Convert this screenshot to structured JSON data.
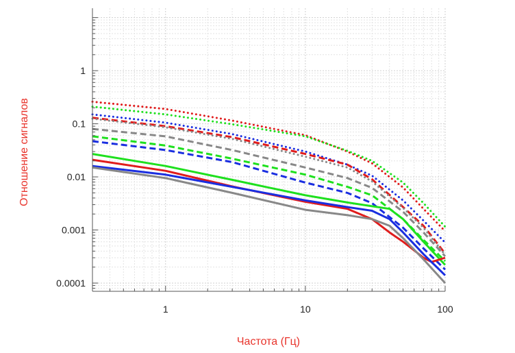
{
  "chart_data": {
    "type": "line",
    "xlabel": "Частота (Гц)",
    "ylabel": "Отношение сигналов",
    "label_color": "#e8332b",
    "xscale": "log",
    "yscale": "log",
    "xlim": [
      0.3,
      100
    ],
    "ylim": [
      7e-05,
      15
    ],
    "grid": true,
    "x_ticks": [
      1,
      10,
      100
    ],
    "x_tick_labels": [
      "1",
      "10",
      "100"
    ],
    "y_ticks": [
      0.0001,
      0.001,
      0.01,
      0.1,
      1
    ],
    "y_tick_labels": [
      "0.0001",
      "0.001",
      "0.01",
      "0.1",
      "1"
    ],
    "series": [
      {
        "color": "#e01c1c",
        "style": "dotted",
        "x": [
          0.3,
          1,
          3,
          10,
          20,
          30,
          50,
          70,
          100
        ],
        "y": [
          0.26,
          0.19,
          0.115,
          0.061,
          0.03,
          0.018,
          0.0063,
          0.0025,
          0.00095
        ]
      },
      {
        "color": "#1ee01e",
        "style": "dotted",
        "x": [
          0.3,
          1,
          3,
          10,
          20,
          30,
          50,
          70,
          100
        ],
        "y": [
          0.21,
          0.15,
          0.098,
          0.058,
          0.031,
          0.02,
          0.0078,
          0.0032,
          0.00115
        ]
      },
      {
        "color": "#1a2ee0",
        "style": "dotted",
        "x": [
          0.3,
          1,
          3,
          10,
          20,
          30,
          50,
          70,
          100
        ],
        "y": [
          0.15,
          0.105,
          0.064,
          0.03,
          0.017,
          0.0105,
          0.0036,
          0.0015,
          0.00058
        ]
      },
      {
        "color": "#e01c1c",
        "style": "dashed",
        "x": [
          0.3,
          1,
          3,
          10,
          20,
          30,
          50,
          70,
          100
        ],
        "y": [
          0.13,
          0.09,
          0.056,
          0.027,
          0.017,
          0.009,
          0.0027,
          0.0012,
          0.00036
        ]
      },
      {
        "color": "#888888",
        "style": "dotted",
        "x": [
          0.3,
          1,
          3,
          10,
          20,
          30,
          50,
          70,
          100
        ],
        "y": [
          0.125,
          0.086,
          0.052,
          0.024,
          0.015,
          0.0082,
          0.0026,
          0.0011,
          0.00034
        ]
      },
      {
        "color": "#888888",
        "style": "dashed",
        "x": [
          0.3,
          1,
          3,
          10,
          20,
          30,
          50,
          70,
          100
        ],
        "y": [
          0.08,
          0.058,
          0.032,
          0.015,
          0.0095,
          0.0062,
          0.0022,
          0.0009,
          0.00032
        ]
      },
      {
        "color": "#1ee01e",
        "style": "dashed",
        "x": [
          0.3,
          1,
          3,
          10,
          20,
          30,
          50,
          70,
          100
        ],
        "y": [
          0.058,
          0.039,
          0.022,
          0.011,
          0.0065,
          0.0045,
          0.0016,
          0.00065,
          0.00026
        ]
      },
      {
        "color": "#1a2ee0",
        "style": "dashed",
        "x": [
          0.3,
          1,
          3,
          10,
          20,
          30,
          50,
          70,
          100
        ],
        "y": [
          0.047,
          0.032,
          0.019,
          0.0078,
          0.005,
          0.0032,
          0.0011,
          0.00045,
          0.00018
        ]
      },
      {
        "color": "#1ee01e",
        "style": "solid",
        "x": [
          0.3,
          1,
          3,
          10,
          20,
          30,
          40,
          50,
          70,
          100
        ],
        "y": [
          0.027,
          0.016,
          0.0088,
          0.0045,
          0.0033,
          0.0028,
          0.0025,
          0.0016,
          0.0006,
          0.00022
        ]
      },
      {
        "color": "#e01c1c",
        "style": "solid",
        "x": [
          0.3,
          1,
          3,
          10,
          20,
          30,
          40,
          50,
          70,
          80,
          100
        ],
        "y": [
          0.021,
          0.013,
          0.0066,
          0.0034,
          0.0025,
          0.0016,
          0.0009,
          0.0006,
          0.0003,
          0.00025,
          0.0003
        ]
      },
      {
        "color": "#1a2ee0",
        "style": "solid",
        "x": [
          0.3,
          1,
          3,
          10,
          20,
          30,
          40,
          50,
          70,
          100
        ],
        "y": [
          0.016,
          0.011,
          0.0065,
          0.0036,
          0.0027,
          0.0023,
          0.0016,
          0.0009,
          0.00035,
          0.00014
        ]
      },
      {
        "color": "#888888",
        "style": "solid",
        "x": [
          0.3,
          1,
          3,
          10,
          20,
          30,
          40,
          50,
          70,
          100
        ],
        "y": [
          0.015,
          0.0095,
          0.005,
          0.0024,
          0.0019,
          0.0016,
          0.0012,
          0.0007,
          0.00028,
          0.0001
        ]
      }
    ]
  }
}
